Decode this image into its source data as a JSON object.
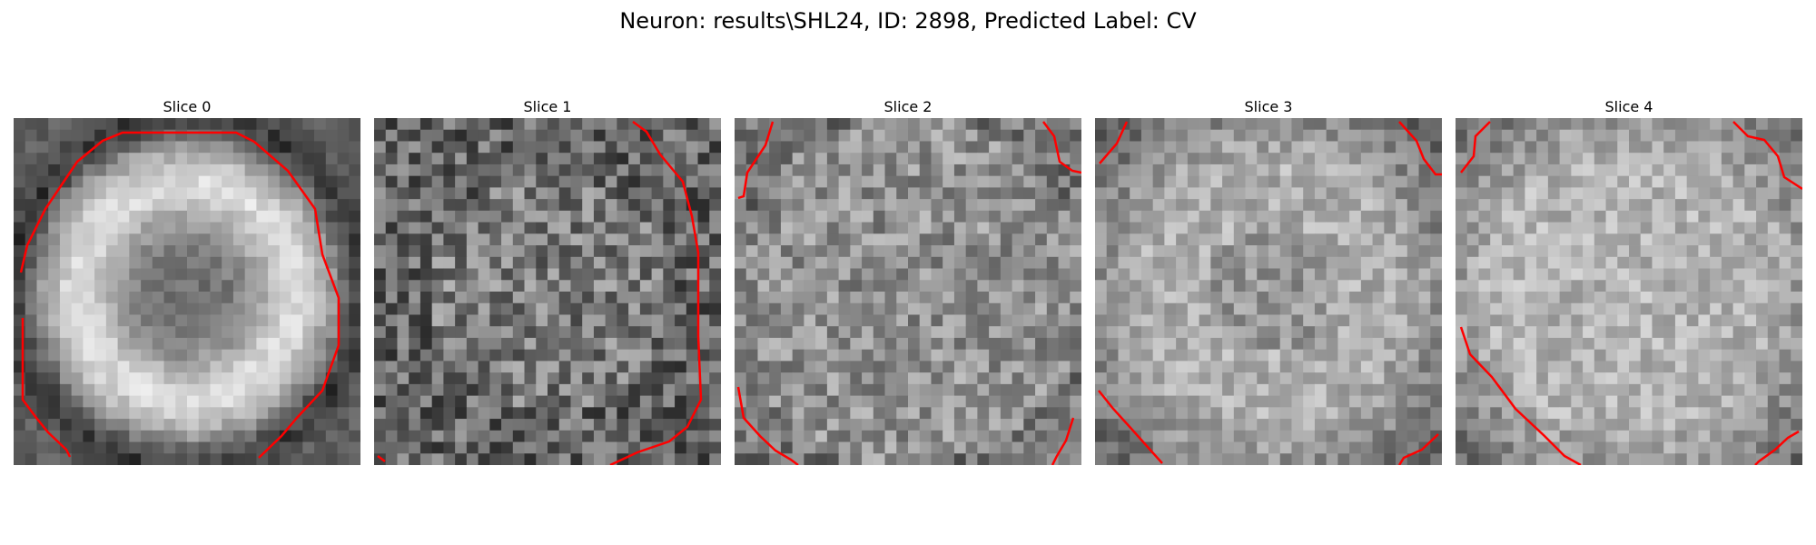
{
  "figure": {
    "title": "Neuron: results\\SHL24, ID: 2898, Predicted Label: CV"
  },
  "panels": [
    {
      "title": "Slice 0",
      "profile": "ring"
    },
    {
      "title": "Slice 1",
      "profile": "noisy"
    },
    {
      "title": "Slice 2",
      "profile": "noisy-light"
    },
    {
      "title": "Slice 3",
      "profile": "soft-center"
    },
    {
      "title": "Slice 4",
      "profile": "bright-center"
    }
  ],
  "colors": {
    "contour": "#ff0000",
    "image_min": "#000000",
    "image_max": "#ffffff"
  }
}
